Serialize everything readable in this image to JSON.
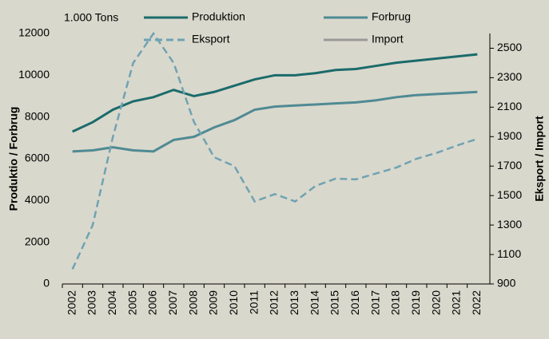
{
  "chart_data": {
    "type": "line",
    "annotation": "1.000 Tons",
    "ylabel": "Produktio / Forbrug",
    "y2label": "Eksport / Import",
    "categories": [
      "2002",
      "2003",
      "2004",
      "2005",
      "2006",
      "2007",
      "2008",
      "2009",
      "2010",
      "2011",
      "2012",
      "2013",
      "2014",
      "2015",
      "2016",
      "2017",
      "2018",
      "2019",
      "2020",
      "2021",
      "2022"
    ],
    "series": [
      {
        "name": "Produktion",
        "color": "#1b6b6b",
        "dash": false,
        "values": [
          7300,
          7750,
          8350,
          8750,
          8950,
          9300,
          9000,
          9200,
          9500,
          9800,
          10000,
          10000,
          10100,
          10250,
          10300,
          10450,
          10600,
          10700,
          10800,
          10900,
          11000
        ]
      },
      {
        "name": "Forbrug",
        "color": "#4f8a94",
        "dash": false,
        "values": [
          6350,
          6400,
          6550,
          6400,
          6350,
          6900,
          7050,
          7500,
          7850,
          8350,
          8500,
          8550,
          8600,
          8650,
          8700,
          8800,
          8950,
          9050,
          9100,
          9150,
          9200
        ]
      },
      {
        "name": "Eksport",
        "color": "#6fa3b3",
        "dash": true,
        "axis": "y2",
        "values": [
          1000,
          1300,
          1900,
          2400,
          2600,
          2400,
          2000,
          1760,
          1700,
          1460,
          1510,
          1460,
          1565,
          1615,
          1610,
          1650,
          1690,
          1750,
          1790,
          1840,
          1885
        ]
      },
      {
        "name": "Import",
        "color": "#9a9a9a",
        "dash": false,
        "axis": "y2",
        "values": [
          null,
          null,
          null,
          null,
          null,
          null,
          null,
          null,
          null,
          null,
          null,
          null,
          null,
          null,
          null,
          null,
          null,
          null,
          null,
          null,
          null
        ]
      }
    ],
    "ylim": [
      0,
      12000
    ],
    "yticks": [
      0,
      2000,
      4000,
      6000,
      8000,
      10000,
      12000
    ],
    "y2lim": [
      900,
      2600
    ],
    "y2ticks": [
      900,
      1100,
      1300,
      1500,
      1700,
      1900,
      2100,
      2300,
      2500
    ],
    "grid": false
  }
}
